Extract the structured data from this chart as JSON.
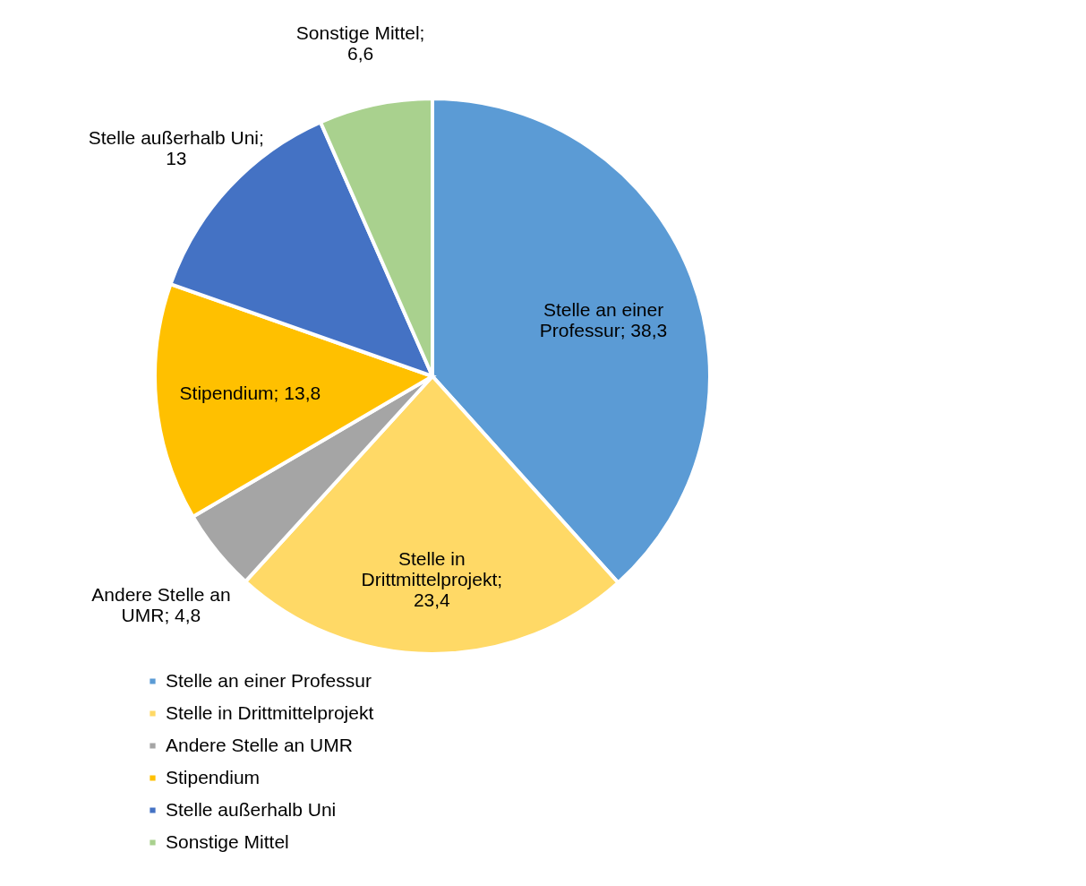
{
  "chart_data": {
    "type": "pie",
    "categories": [
      "Stelle an einer Professur",
      "Stelle in Drittmittelprojekt",
      "Andere Stelle an UMR",
      "Stipendium",
      "Stelle außerhalb Uni",
      "Sonstige Mittel"
    ],
    "values": [
      38.3,
      23.4,
      4.8,
      13.8,
      13,
      6.6
    ],
    "value_labels": [
      "Stelle an einer\nProfessur; 38,3",
      "Stelle in\nDrittmittelprojekt;\n23,4",
      "Andere Stelle an\nUMR; 4,8",
      "Stipendium; 13,8",
      "Stelle außerhalb Uni;\n13",
      "Sonstige Mittel;\n6,6"
    ],
    "colors": [
      "#5b9bd5",
      "#ffd966",
      "#a5a5a5",
      "#ffc000",
      "#4472c4",
      "#a9d18e"
    ],
    "legend": "bottom left"
  }
}
